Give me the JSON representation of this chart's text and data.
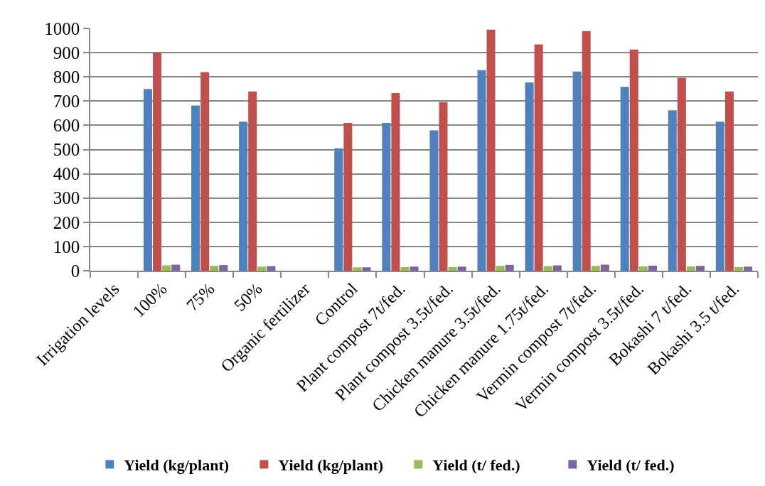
{
  "chart_data": {
    "type": "bar",
    "categories": [
      "Irrigation levels",
      "100%",
      "75%",
      "50%",
      "Organic fertilizer",
      "Control",
      "Plant compost 7t/fed.",
      "Plant compost 3.5t/fed.",
      "Chicken manure 3.5t/fed.",
      "Chicken manure 1.75t/fed.",
      "Vermin compost 7t/fed.",
      "Vermin compost 3.5t/fed.",
      "Bokashi 7 t/fed.",
      "Bokashi 3.5 t/fed."
    ],
    "series": [
      {
        "name": "Yield (kg/plant)",
        "color": "#4f81bd",
        "values": [
          0,
          750,
          682,
          615,
          null,
          505,
          610,
          579,
          828,
          777,
          822,
          759,
          662,
          615
        ]
      },
      {
        "name": "Yield (kg/plant)",
        "color": "#c0504d",
        "values": [
          0,
          900,
          820,
          740,
          null,
          610,
          733,
          696,
          995,
          934,
          989,
          913,
          796,
          740
        ]
      },
      {
        "name": "Yield (t/ fed.)",
        "color": "#9bbb59",
        "values": [
          0,
          22,
          20,
          17,
          null,
          14,
          15,
          15,
          20,
          19,
          20,
          18,
          18,
          15
        ]
      },
      {
        "name": "Yield (t/ fed.)",
        "color": "#8064a2",
        "values": [
          0,
          25,
          23,
          19,
          null,
          14,
          17,
          17,
          24,
          22,
          25,
          21,
          20,
          17
        ]
      }
    ],
    "ylim": [
      0,
      1000
    ],
    "yticks": [
      0,
      100,
      200,
      300,
      400,
      500,
      600,
      700,
      800,
      900,
      1000
    ],
    "grid": "y",
    "legend": "bottom"
  }
}
